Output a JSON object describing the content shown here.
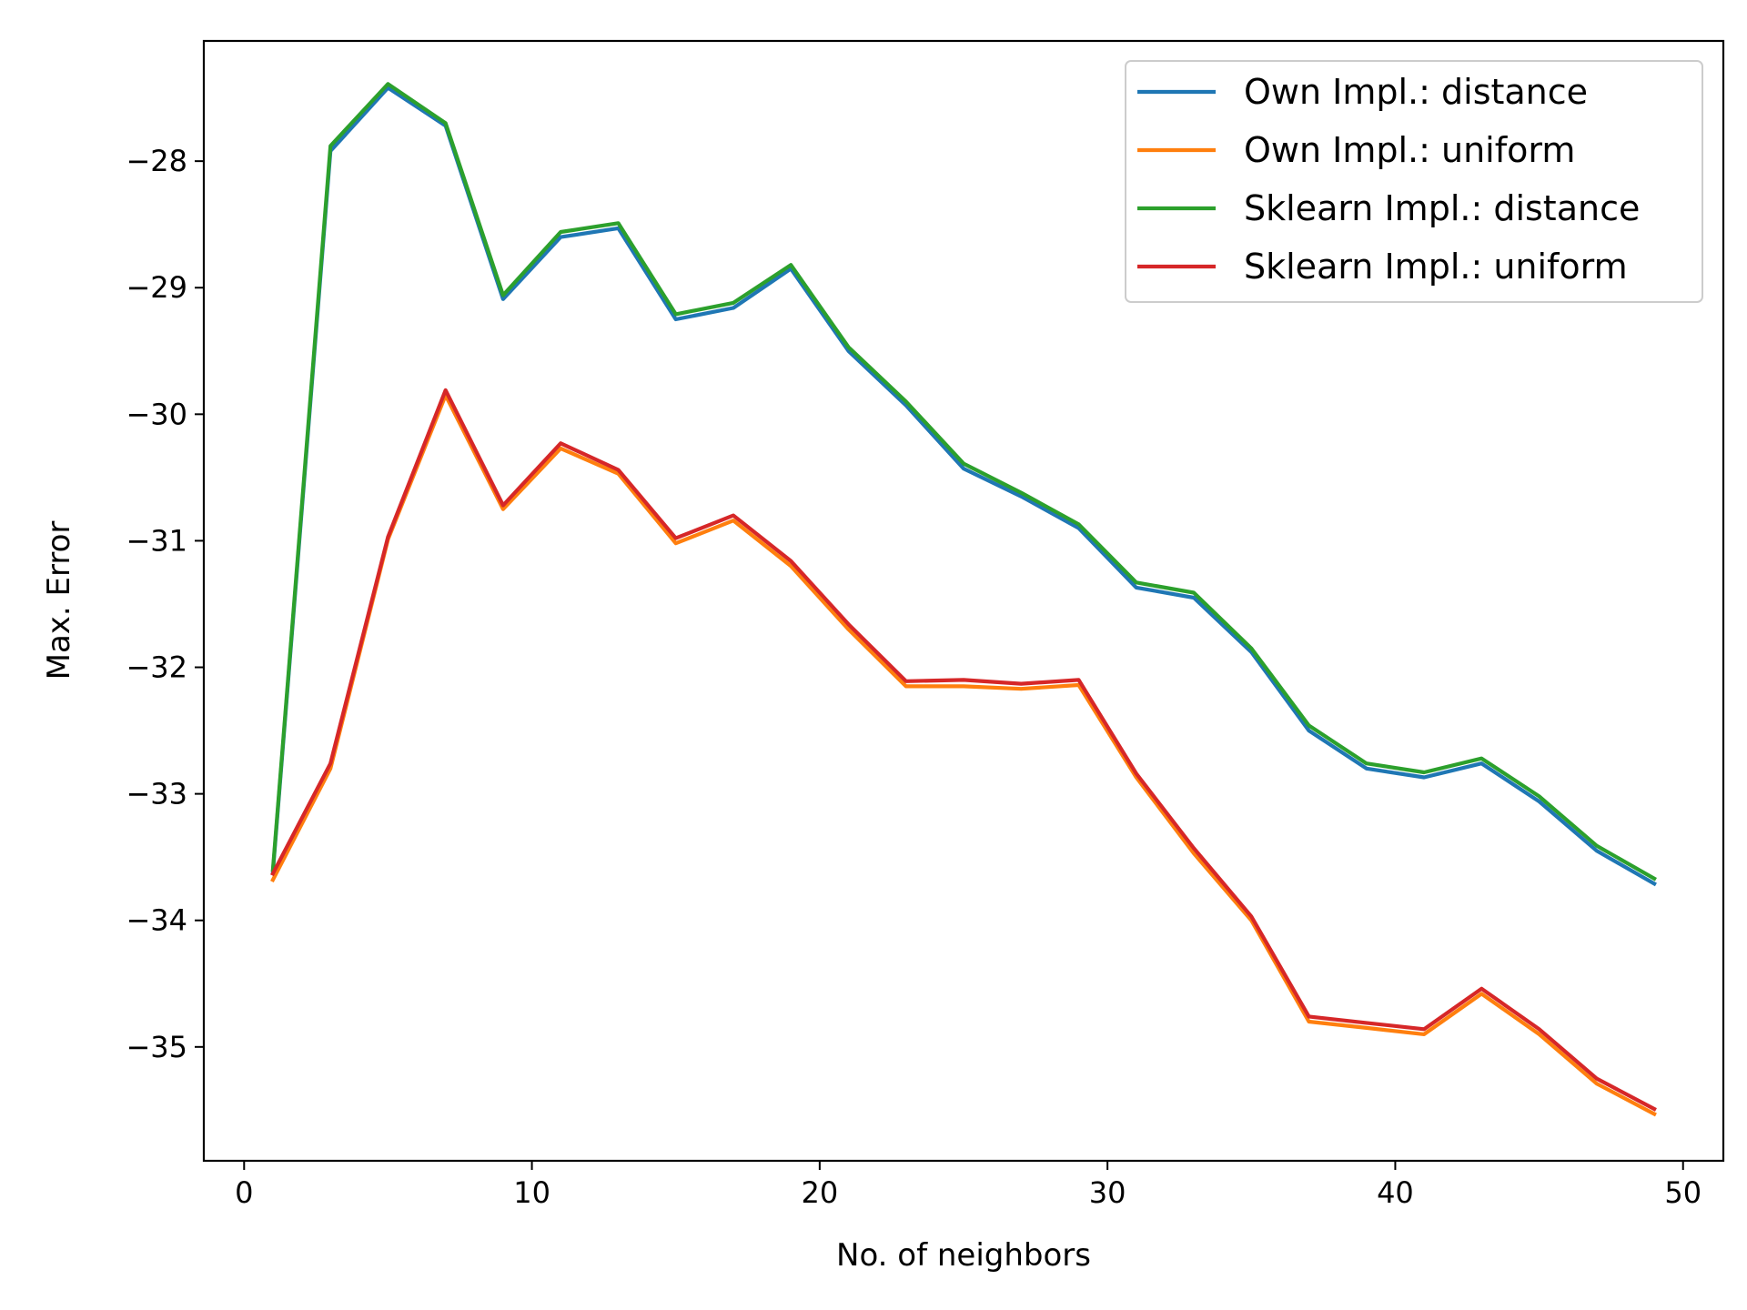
{
  "chart_data": {
    "type": "line",
    "title": "",
    "xlabel": "No. of neighbors",
    "ylabel": "Max. Error",
    "xlim": [
      -1.4,
      51.4
    ],
    "ylim": [
      -35.9,
      -27.05
    ],
    "xticks": [
      0,
      10,
      20,
      30,
      40,
      50
    ],
    "yticks": [
      -35,
      -34,
      -33,
      -32,
      -31,
      -30,
      -29,
      -28
    ],
    "ytick_labels": [
      "−35",
      "−34",
      "−33",
      "−32",
      "−31",
      "−30",
      "−29",
      "−28"
    ],
    "grid": false,
    "legend_position": "top-right",
    "x": [
      1,
      3,
      5,
      7,
      9,
      11,
      13,
      15,
      17,
      19,
      21,
      23,
      25,
      27,
      29,
      31,
      33,
      35,
      37,
      39,
      41,
      43,
      45,
      47,
      49
    ],
    "series": [
      {
        "name": "Own Impl.: distance",
        "color": "#1f77b4",
        "values": [
          -33.62,
          -27.92,
          -27.42,
          -27.72,
          -29.09,
          -28.6,
          -28.53,
          -29.25,
          -29.16,
          -28.85,
          -29.5,
          -29.93,
          -30.43,
          -30.65,
          -30.9,
          -31.37,
          -31.45,
          -31.88,
          -32.5,
          -32.8,
          -32.87,
          -32.76,
          -33.06,
          -33.45,
          -33.71
        ]
      },
      {
        "name": "Own Impl.: uniform",
        "color": "#ff7f0e",
        "values": [
          -33.68,
          -32.8,
          -30.99,
          -29.85,
          -30.75,
          -30.27,
          -30.47,
          -31.02,
          -30.84,
          -31.2,
          -31.7,
          -32.15,
          -32.15,
          -32.17,
          -32.14,
          -32.87,
          -33.47,
          -34.0,
          -34.8,
          -34.85,
          -34.9,
          -34.58,
          -34.9,
          -35.29,
          -35.53
        ]
      },
      {
        "name": "Sklearn Impl.: distance",
        "color": "#2ca02c",
        "values": [
          -33.6,
          -27.88,
          -27.39,
          -27.7,
          -29.06,
          -28.56,
          -28.49,
          -29.21,
          -29.12,
          -28.82,
          -29.47,
          -29.9,
          -30.39,
          -30.62,
          -30.87,
          -31.33,
          -31.41,
          -31.85,
          -32.46,
          -32.76,
          -32.83,
          -32.72,
          -33.02,
          -33.41,
          -33.67
        ]
      },
      {
        "name": "Sklearn Impl.: uniform",
        "color": "#d62728",
        "values": [
          -33.63,
          -32.76,
          -30.97,
          -29.81,
          -30.72,
          -30.23,
          -30.44,
          -30.98,
          -30.8,
          -31.16,
          -31.66,
          -32.11,
          -32.1,
          -32.13,
          -32.1,
          -32.84,
          -33.43,
          -33.97,
          -34.76,
          -34.81,
          -34.86,
          -34.54,
          -34.86,
          -35.25,
          -35.49
        ]
      }
    ]
  }
}
